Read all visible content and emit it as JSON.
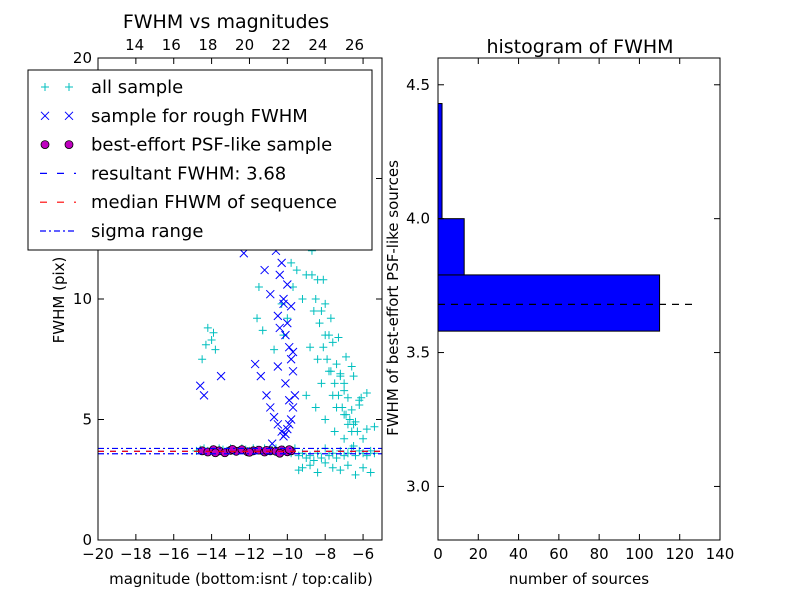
{
  "chart_data": [
    {
      "type": "scatter",
      "title": "FWHM vs magnitudes",
      "xlabel": "magnitude (bottom:isnt / top:calib)",
      "ylabel": "FWHM (pix)",
      "xlim": [
        -20,
        -5
      ],
      "ylim": [
        0,
        20
      ],
      "top_xlim": [
        12,
        27.5
      ],
      "x_ticks": [
        -20,
        -18,
        -16,
        -14,
        -12,
        -10,
        -8,
        -6
      ],
      "x_tick_labels": [
        "−20",
        "−18",
        "−16",
        "−14",
        "−12",
        "−10",
        "−8",
        "−6"
      ],
      "top_ticks": [
        14,
        16,
        18,
        20,
        22,
        24,
        26
      ],
      "top_tick_labels": [
        "14",
        "16",
        "18",
        "20",
        "22",
        "24",
        "26"
      ],
      "y_ticks": [
        0,
        5,
        10,
        15,
        20
      ],
      "y_tick_labels": [
        "0",
        "5",
        "10",
        "15",
        "20"
      ],
      "legend_position": "upper-left",
      "series": [
        {
          "name": "all sample",
          "marker": "+",
          "color": "#00bfbf",
          "x": [
            -14.8,
            -14.6,
            -14.4,
            -14.2,
            -14.0,
            -13.8,
            -13.6,
            -13.4,
            -13.2,
            -13.0,
            -12.8,
            -12.6,
            -12.4,
            -12.2,
            -12.0,
            -11.8,
            -11.6,
            -11.4,
            -11.2,
            -11.0,
            -10.8,
            -10.6,
            -10.4,
            -10.2,
            -10.0,
            -9.8,
            -9.6,
            -9.4,
            -9.2,
            -9.0,
            -8.8,
            -8.6,
            -8.4,
            -8.2,
            -8.0,
            -7.8,
            -7.6,
            -7.4,
            -7.2,
            -7.0,
            -6.8,
            -6.6,
            -6.4,
            -6.2,
            -6.0,
            -5.8,
            -5.6,
            -5.4,
            -14.2,
            -14.0,
            -13.8,
            -13.6,
            -12.0,
            -11.5,
            -11.2,
            -10.8,
            -10.5,
            -10.2,
            -10.0,
            -9.8,
            -9.6,
            -9.4,
            -9.2,
            -9.0,
            -8.8,
            -8.6,
            -8.4,
            -8.2,
            -8.0,
            -7.8,
            -7.6,
            -7.4,
            -7.2,
            -7.0,
            -6.8,
            -6.6,
            -6.4,
            -6.2,
            -6.0,
            -5.8,
            -8.9,
            -8.7,
            -8.5,
            -8.3,
            -8.1,
            -7.9,
            -7.7,
            -7.5,
            -7.3,
            -7.1,
            -6.9,
            -6.7,
            -6.5,
            -6.3,
            -9.1,
            -8.6,
            -8.2,
            -7.8,
            -7.4,
            -7.0,
            -6.6,
            -9.3,
            -8.9,
            -8.4,
            -8.0,
            -7.6,
            -7.2,
            -6.8,
            -14.5,
            -14.3,
            -13.9,
            -11.6,
            -11.3,
            -10.7,
            -10.3,
            -9.7,
            -9.5,
            -9.0,
            -8.5,
            -8.0,
            -7.5,
            -7.0,
            -6.5,
            -9.4,
            -9.2,
            -8.8,
            -8.4,
            -8.0,
            -7.6,
            -7.2,
            -6.8,
            -6.4,
            -6.0,
            -5.6,
            -7.0,
            -6.6,
            -6.2,
            -5.8,
            -5.4,
            -8.7,
            -8.1,
            -7.7,
            -7.3,
            -6.9,
            -6.5,
            -6.1
          ],
          "y": [
            3.7,
            3.75,
            3.8,
            3.7,
            3.75,
            3.7,
            3.8,
            3.75,
            3.7,
            3.8,
            3.75,
            3.7,
            3.8,
            3.75,
            3.7,
            3.8,
            3.75,
            3.7,
            3.8,
            3.7,
            3.75,
            3.8,
            3.7,
            3.75,
            3.7,
            3.6,
            3.8,
            3.5,
            3.6,
            3.4,
            3.5,
            3.3,
            3.6,
            3.4,
            3.8,
            3.5,
            3.6,
            3.4,
            3.7,
            3.5,
            3.6,
            3.8,
            3.5,
            3.7,
            3.6,
            3.5,
            3.7,
            3.6,
            8.8,
            8.3,
            7.9,
            15.5,
            16.4,
            10.5,
            14.2,
            16.8,
            13.5,
            8.5,
            9.2,
            11.5,
            14.0,
            12.5,
            10.0,
            11.0,
            8.0,
            9.5,
            7.5,
            6.5,
            8.5,
            7.0,
            6.0,
            5.5,
            6.8,
            5.2,
            4.8,
            4.5,
            4.9,
            5.6,
            4.2,
            4.6,
            13.0,
            11.0,
            10.0,
            9.0,
            8.0,
            7.5,
            7.0,
            6.5,
            6.0,
            5.5,
            5.2,
            5.0,
            4.8,
            4.5,
            15.0,
            12.5,
            9.5,
            8.5,
            7.3,
            6.2,
            5.4,
            17.5,
            14.0,
            10.8,
            9.8,
            8.2,
            6.9,
            5.9,
            7.5,
            8.1,
            8.6,
            9.2,
            8.7,
            7.9,
            9.8,
            10.5,
            11.2,
            6.0,
            5.5,
            5.0,
            4.5,
            4.2,
            3.9,
            2.9,
            3.0,
            3.1,
            2.8,
            3.2,
            3.0,
            2.9,
            3.1,
            2.7,
            3.0,
            2.8,
            6.5,
            7.2,
            5.8,
            6.1,
            4.7,
            12.0,
            10.8,
            9.2,
            8.4,
            7.6,
            6.8,
            5.9
          ]
        },
        {
          "name": "sample for rough FWHM",
          "marker": "x",
          "color": "#0000ff",
          "x": [
            -14.6,
            -14.4,
            -13.5,
            -12.3,
            -11.7,
            -11.4,
            -11.1,
            -10.9,
            -10.7,
            -10.5,
            -10.3,
            -10.2,
            -10.1,
            -10.0,
            -9.9,
            -9.8,
            -9.7,
            -9.6,
            -11.0,
            -10.8,
            -10.6,
            -10.4,
            -10.2,
            -10.0,
            -9.9,
            -9.8,
            -9.7,
            -11.2,
            -10.9,
            -10.5,
            -10.1,
            -9.7,
            -11.3,
            -10.6,
            -10.3,
            -10.0,
            -9.8,
            -11.6,
            -11.1,
            -10.4,
            -10.1,
            -9.9,
            -10.8,
            -10.5,
            -10.2,
            -9.7
          ],
          "y": [
            6.4,
            6.0,
            6.8,
            11.9,
            7.3,
            6.8,
            6.0,
            5.5,
            5.1,
            4.8,
            4.5,
            4.3,
            4.4,
            4.6,
            4.8,
            5.0,
            5.5,
            6.0,
            15.0,
            13.5,
            12.0,
            11.0,
            10.0,
            9.0,
            8.0,
            7.5,
            7.0,
            11.2,
            10.2,
            9.3,
            8.5,
            7.8,
            14.5,
            12.8,
            11.5,
            10.6,
            9.7,
            16.2,
            13.0,
            8.8,
            6.5,
            5.8,
            4.0,
            7.2,
            9.8,
            12.5
          ]
        },
        {
          "name": "best-effort PSF-like sample",
          "marker": "o",
          "color": "#bf00bf",
          "x": [
            -14.5,
            -14.2,
            -13.9,
            -13.6,
            -13.3,
            -13.0,
            -12.7,
            -12.4,
            -12.1,
            -11.8,
            -11.5,
            -11.2,
            -10.9,
            -10.6,
            -10.3,
            -10.0,
            -9.8,
            -13.8,
            -12.9,
            -12.0,
            -11.1,
            -10.4,
            -9.9
          ],
          "y": [
            3.7,
            3.65,
            3.75,
            3.7,
            3.62,
            3.72,
            3.68,
            3.75,
            3.66,
            3.7,
            3.73,
            3.65,
            3.7,
            3.68,
            3.74,
            3.66,
            3.7,
            3.62,
            3.76,
            3.64,
            3.72,
            3.6,
            3.75
          ]
        }
      ],
      "reference_lines": [
        {
          "name": "resultant FWHM: 3.68",
          "style": "dashed",
          "color": "#0000ff",
          "y": 3.68
        },
        {
          "name": "median FHWM of sequence",
          "style": "dashed",
          "color": "#ff0000",
          "y": 3.68
        },
        {
          "name": "sigma range",
          "style": "dashdot",
          "color": "#0000ff",
          "y": [
            3.58,
            3.8
          ]
        }
      ]
    },
    {
      "type": "bar",
      "orientation": "horizontal",
      "title": "histogram of FWHM",
      "xlabel": "number of sources",
      "ylabel": "FWHM of best-effort PSF-like sources",
      "xlim": [
        0,
        140
      ],
      "ylim": [
        2.8,
        4.6
      ],
      "x_ticks": [
        0,
        20,
        40,
        60,
        80,
        100,
        120,
        140
      ],
      "y_ticks": [
        3.0,
        3.5,
        4.0,
        4.5
      ],
      "y_tick_labels": [
        "3.0",
        "3.5",
        "4.0",
        "4.5"
      ],
      "bar_color": "#0000ff",
      "bins": [
        {
          "from": 3.58,
          "to": 3.79,
          "count": 110
        },
        {
          "from": 3.79,
          "to": 4.0,
          "count": 13
        },
        {
          "from": 4.0,
          "to": 4.43,
          "count": 2
        }
      ],
      "reference_line": {
        "y": 3.68,
        "x_end": 128,
        "style": "dashed",
        "color": "#000000"
      }
    }
  ]
}
